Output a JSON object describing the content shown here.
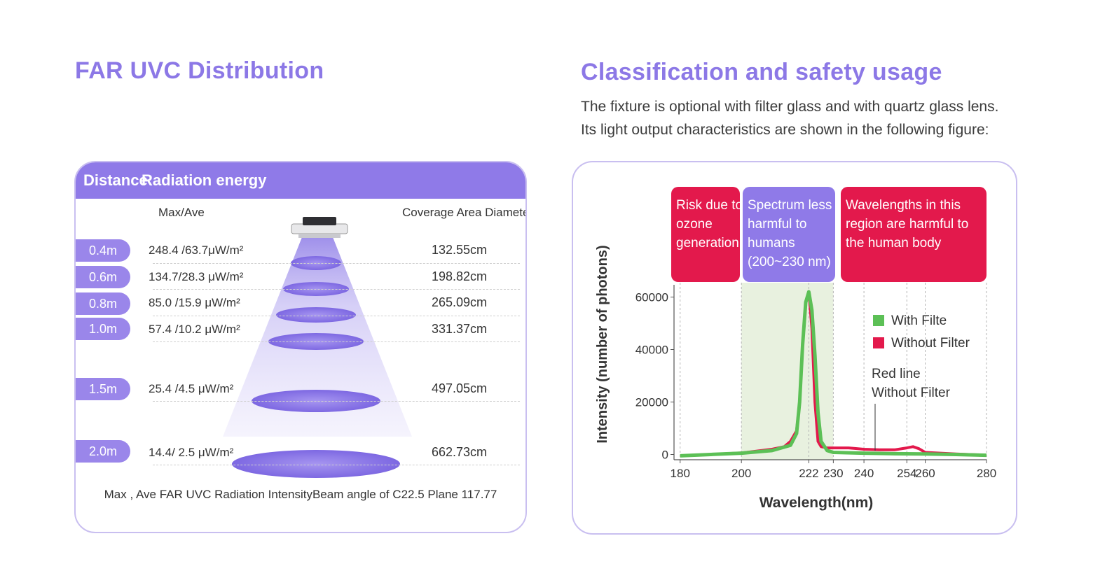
{
  "left": {
    "heading": "FAR UVC Distribution",
    "table_header": {
      "distance": "Distance",
      "radiation": "Radiation energy"
    },
    "col_max_ave": "Max/Ave",
    "col_coverage": "Coverage Area Diameter",
    "rows": [
      {
        "distance": "0.4m",
        "energy": "248.4 /63.7μW/m²",
        "diameter": "132.55cm"
      },
      {
        "distance": "0.6m",
        "energy": "134.7/28.3 μW/m²",
        "diameter": "198.82cm"
      },
      {
        "distance": "0.8m",
        "energy": "85.0 /15.9 μW/m²",
        "diameter": "265.09cm"
      },
      {
        "distance": "1.0m",
        "energy": "57.4 /10.2 μW/m²",
        "diameter": "331.37cm"
      },
      {
        "distance": "1.5m",
        "energy": "25.4 /4.5 μW/m²",
        "diameter": "497.05cm"
      },
      {
        "distance": "2.0m",
        "energy": "14.4/ 2.5 μW/m²",
        "diameter": "662.73cm"
      }
    ],
    "footnote": "Max , Ave FAR UVC Radiation IntensityBeam angle of C22.5 Plane 117.77",
    "colors": {
      "accent": "#8f7ae8",
      "beam": "#8a78e6"
    }
  },
  "right": {
    "heading": "Classification and safety usage",
    "intro_line1": "The fixture is optional with filter glass and with quartz glass lens.",
    "intro_line2": " Its light output characteristics are shown in the following figure:",
    "zones": [
      {
        "lines": [
          "Risk due to",
          "ozone",
          "generation"
        ],
        "color": "#e3194c"
      },
      {
        "lines": [
          "Spectrum less",
          "harmful to",
          "humans",
          "(200~230 nm)"
        ],
        "color": "#8f7ae8"
      },
      {
        "lines": [
          "Wavelengths in this",
          "region are harmful to",
          "the human body"
        ],
        "color": "#e3194c"
      }
    ],
    "annotation_lines": [
      "Red   line",
      "Without Filter"
    ]
  },
  "chart_data": {
    "type": "line",
    "xlabel": "Wavelength(nm)",
    "ylabel": "Intensity (number of photons)",
    "xlim": [
      178,
      280
    ],
    "ylim": [
      -2000,
      62000
    ],
    "x_ticks": [
      180,
      200,
      222,
      230,
      240,
      254,
      260,
      280
    ],
    "y_ticks": [
      0,
      20000,
      40000,
      60000
    ],
    "grid": "vertical dashed at x ticks",
    "legend_position": "right",
    "shaded_band": [
      200,
      230
    ],
    "series": [
      {
        "name": "With Filte",
        "color": "#5cc056",
        "x": [
          180,
          190,
          200,
          210,
          216,
          218,
          219,
          220,
          221,
          222,
          223,
          224,
          225,
          226,
          228,
          230,
          240,
          250,
          260,
          270,
          280
        ],
        "y": [
          -500,
          0,
          500,
          1500,
          3500,
          8000,
          20000,
          42000,
          58000,
          62000,
          55000,
          38000,
          16000,
          5000,
          1500,
          800,
          500,
          300,
          200,
          0,
          -300
        ]
      },
      {
        "name": "Without Filter",
        "color": "#e3194c",
        "x": [
          180,
          190,
          200,
          210,
          214,
          216,
          218,
          219,
          220,
          221,
          222,
          223,
          224,
          225,
          226,
          228,
          230,
          235,
          240,
          245,
          250,
          254,
          256,
          258,
          260,
          265,
          270,
          280
        ],
        "y": [
          -500,
          0,
          600,
          2000,
          3000,
          5000,
          9000,
          20000,
          42000,
          58000,
          62000,
          48000,
          20000,
          5000,
          3000,
          2500,
          2500,
          2500,
          2000,
          1800,
          1800,
          2500,
          3000,
          2200,
          800,
          500,
          200,
          -300
        ]
      }
    ]
  }
}
